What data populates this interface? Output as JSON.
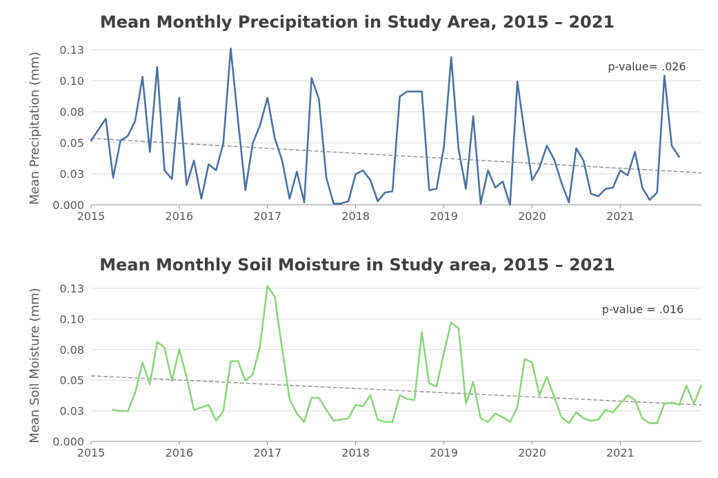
{
  "chart_data": [
    {
      "type": "line",
      "title": "Mean Monthly Precipitation in Study Area, 2015 – 2021",
      "xlabel": "",
      "ylabel": "Mean Precipitation (mm)",
      "annotation": "p-value= .026",
      "x_ticks": [
        "2015",
        "2016",
        "2017",
        "2018",
        "2019",
        "2020",
        "2021"
      ],
      "y_ticks": [
        "0.000",
        "0.03",
        "0.05",
        "0.08",
        "0.10",
        "0.13"
      ],
      "xlim": [
        2015.0,
        2021.92
      ],
      "ylim": [
        0,
        0.126
      ],
      "grid": true,
      "color": "#4a72a0",
      "trend": {
        "x": [
          2015.0,
          2021.92
        ],
        "y": [
          0.054,
          0.026
        ]
      },
      "series": [
        {
          "x": [
            2015.0,
            2015.083,
            2015.167,
            2015.25,
            2015.333,
            2015.417,
            2015.5,
            2015.583,
            2015.667,
            2015.75,
            2015.833,
            2015.917,
            2016.0,
            2016.083,
            2016.167,
            2016.25,
            2016.333,
            2016.417,
            2016.5,
            2016.583,
            2016.667,
            2016.75,
            2016.833,
            2016.917,
            2017.0,
            2017.083,
            2017.167,
            2017.25,
            2017.333,
            2017.417,
            2017.5,
            2017.583,
            2017.667,
            2017.75,
            2017.833,
            2017.917,
            2018.0,
            2018.083,
            2018.167,
            2018.25,
            2018.333,
            2018.417,
            2018.5,
            2018.583,
            2018.667,
            2018.75,
            2018.833,
            2018.917,
            2019.0,
            2019.083,
            2019.167,
            2019.25,
            2019.333,
            2019.417,
            2019.5,
            2019.583,
            2019.667,
            2019.75,
            2019.833,
            2019.917,
            2020.0,
            2020.083,
            2020.167,
            2020.25,
            2020.333,
            2020.417,
            2020.5,
            2020.583,
            2020.667,
            2020.75,
            2020.833,
            2020.917,
            2021.0,
            2021.083,
            2021.167,
            2021.25,
            2021.333,
            2021.417,
            2021.5,
            2021.583,
            2021.667
          ],
          "y": [
            0.052,
            0.061,
            0.07,
            0.022,
            0.052,
            0.056,
            0.068,
            0.104,
            0.043,
            0.112,
            0.028,
            0.021,
            0.087,
            0.016,
            0.036,
            0.005,
            0.033,
            0.028,
            0.05,
            0.127,
            0.068,
            0.012,
            0.05,
            0.065,
            0.087,
            0.054,
            0.036,
            0.005,
            0.027,
            0.002,
            0.103,
            0.086,
            0.022,
            0.001,
            0.001,
            0.003,
            0.025,
            0.028,
            0.02,
            0.003,
            0.01,
            0.011,
            0.088,
            0.092,
            0.092,
            0.092,
            0.012,
            0.013,
            0.047,
            0.12,
            0.045,
            0.013,
            0.072,
            0.001,
            0.028,
            0.014,
            0.019,
            0.0,
            0.1,
            0.058,
            0.02,
            0.03,
            0.048,
            0.037,
            0.018,
            0.002,
            0.046,
            0.036,
            0.009,
            0.007,
            0.013,
            0.014,
            0.028,
            0.024,
            0.043,
            0.014,
            0.004,
            0.01,
            0.105,
            0.048,
            0.039
          ]
        }
      ]
    },
    {
      "type": "line",
      "title": "Mean Monthly Soil Moisture in Study area, 2015 – 2021",
      "xlabel": "",
      "ylabel": "Mean Soil Moisture (mm)",
      "annotation": "p-value = .016",
      "x_ticks": [
        "2015",
        "2016",
        "2017",
        "2018",
        "2019",
        "2020",
        "2021"
      ],
      "y_ticks": [
        "0.000",
        "0.03",
        "0.05",
        "0.08",
        "0.10",
        "0.13"
      ],
      "xlim": [
        2015.0,
        2021.92
      ],
      "ylim": [
        0,
        0.126
      ],
      "grid": true,
      "color": "#8bd47c",
      "trend": {
        "x": [
          2015.0,
          2021.92
        ],
        "y": [
          0.054,
          0.03
        ]
      },
      "series": [
        {
          "x": [
            2015.25,
            2015.333,
            2015.417,
            2015.5,
            2015.583,
            2015.667,
            2015.75,
            2015.833,
            2015.917,
            2016.0,
            2016.083,
            2016.167,
            2016.25,
            2016.333,
            2016.417,
            2016.5,
            2016.583,
            2016.667,
            2016.75,
            2016.833,
            2016.917,
            2017.0,
            2017.083,
            2017.167,
            2017.25,
            2017.333,
            2017.417,
            2017.5,
            2017.583,
            2017.667,
            2017.75,
            2017.833,
            2017.917,
            2018.0,
            2018.083,
            2018.167,
            2018.25,
            2018.333,
            2018.417,
            2018.5,
            2018.583,
            2018.667,
            2018.75,
            2018.833,
            2018.917,
            2019.0,
            2019.083,
            2019.167,
            2019.25,
            2019.333,
            2019.417,
            2019.5,
            2019.583,
            2019.667,
            2019.75,
            2019.833,
            2019.917,
            2020.0,
            2020.083,
            2020.167,
            2020.25,
            2020.333,
            2020.417,
            2020.5,
            2020.583,
            2020.667,
            2020.75,
            2020.833,
            2020.917,
            2021.0,
            2021.083,
            2021.167,
            2021.25,
            2021.333,
            2021.417,
            2021.5,
            2021.583,
            2021.667,
            2021.75,
            2021.833,
            2021.917
          ],
          "y": [
            0.026,
            0.025,
            0.025,
            0.04,
            0.065,
            0.047,
            0.082,
            0.077,
            0.05,
            0.076,
            0.053,
            0.026,
            0.028,
            0.03,
            0.017,
            0.025,
            0.066,
            0.066,
            0.05,
            0.055,
            0.079,
            0.128,
            0.119,
            0.076,
            0.035,
            0.023,
            0.016,
            0.036,
            0.036,
            0.026,
            0.017,
            0.018,
            0.019,
            0.03,
            0.029,
            0.038,
            0.018,
            0.016,
            0.016,
            0.038,
            0.035,
            0.034,
            0.09,
            0.048,
            0.045,
            0.073,
            0.098,
            0.093,
            0.031,
            0.049,
            0.019,
            0.016,
            0.023,
            0.02,
            0.016,
            0.028,
            0.068,
            0.065,
            0.038,
            0.053,
            0.037,
            0.02,
            0.015,
            0.024,
            0.019,
            0.017,
            0.018,
            0.026,
            0.024,
            0.031,
            0.038,
            0.034,
            0.019,
            0.015,
            0.015,
            0.031,
            0.032,
            0.03,
            0.046,
            0.031,
            0.046
          ]
        }
      ]
    }
  ]
}
